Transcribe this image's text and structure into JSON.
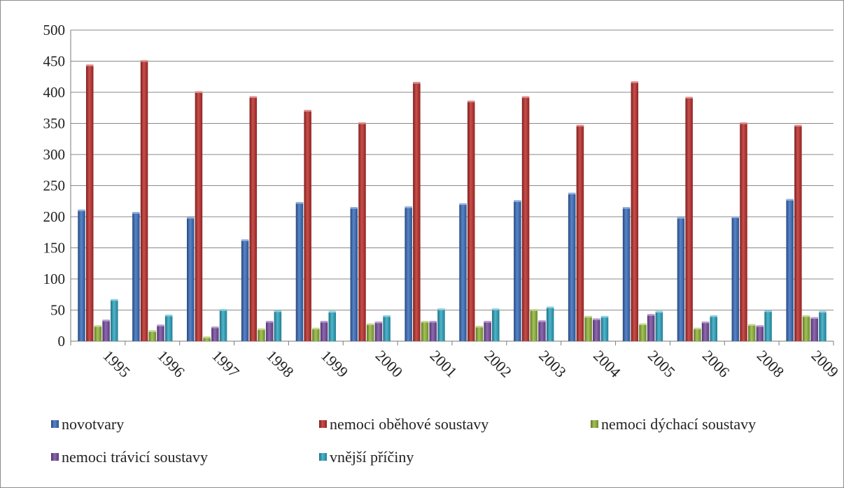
{
  "chart_data": {
    "type": "bar",
    "categories": [
      "1995",
      "1996",
      "1997",
      "1998",
      "1999",
      "2000",
      "2001",
      "2002",
      "2003",
      "2004",
      "2005",
      "2006",
      "2008",
      "2009"
    ],
    "series": [
      {
        "name": "novotvary",
        "color": "#3a6fbf",
        "values": [
          210,
          206,
          198,
          162,
          222,
          214,
          215,
          220,
          225,
          237,
          214,
          198,
          199,
          227
        ]
      },
      {
        "name": "nemoci oběhové soustavy",
        "color": "#c0302c",
        "values": [
          443,
          450,
          400,
          392,
          370,
          350,
          415,
          385,
          392,
          346,
          416,
          391,
          350,
          346
        ]
      },
      {
        "name": "nemoci dýchací soustavy",
        "color": "#93b83a",
        "values": [
          24,
          16,
          6,
          19,
          20,
          27,
          31,
          23,
          50,
          39,
          27,
          20,
          26,
          40
        ]
      },
      {
        "name": "nemoci trávicí soustavy",
        "color": "#7b4ea3",
        "values": [
          33,
          25,
          22,
          31,
          31,
          30,
          31,
          31,
          32,
          35,
          42,
          30,
          24,
          37
        ]
      },
      {
        "name": "vnější příčiny",
        "color": "#2fa9c4",
        "values": [
          66,
          41,
          50,
          48,
          47,
          40,
          51,
          51,
          54,
          39,
          47,
          40,
          48,
          47
        ]
      }
    ],
    "ylim": [
      0,
      500
    ],
    "yticks": [
      0,
      50,
      100,
      150,
      200,
      250,
      300,
      350,
      400,
      450,
      500
    ],
    "grid": true,
    "legend_position": "bottom"
  }
}
